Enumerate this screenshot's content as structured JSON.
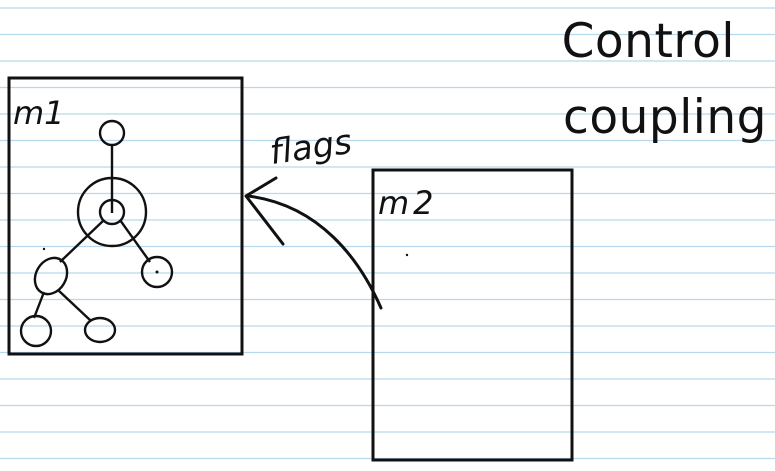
{
  "title": {
    "line1": "Control",
    "line2": "coupling"
  },
  "modules": {
    "m1": {
      "label": "m1"
    },
    "m2": {
      "label": "m2"
    }
  },
  "arrow": {
    "label": "flags",
    "from": "m2",
    "to": "m1"
  },
  "colors": {
    "ink": "#111111",
    "rule_line": "#b8d8ee",
    "paper": "#ffffff"
  }
}
